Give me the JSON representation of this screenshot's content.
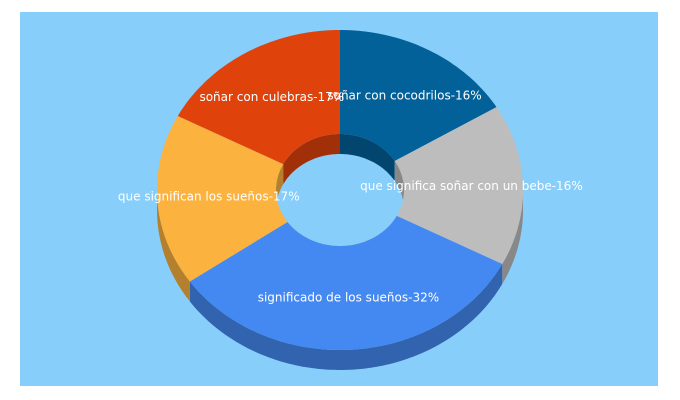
{
  "chart_data": {
    "type": "donut3d",
    "categories": [
      "soñar con cocodrilos",
      "que significa soñar con un bebe",
      "significado de los sueños",
      "que significan los sueños",
      "soñar con culebras"
    ],
    "values": [
      16,
      16,
      32,
      17,
      17
    ],
    "value_labels": [
      "soñar con cocodrilos-16%",
      "que significa soñar con un bebe-16%",
      "significado de los sueños-32%",
      "que significan los sueños-17%",
      "soñar con culebras-17%"
    ],
    "colors": [
      "#03619a",
      "#bdbdbd",
      "#4489f2",
      "#fcb23f",
      "#e0420b"
    ],
    "background": "#87cefa"
  }
}
